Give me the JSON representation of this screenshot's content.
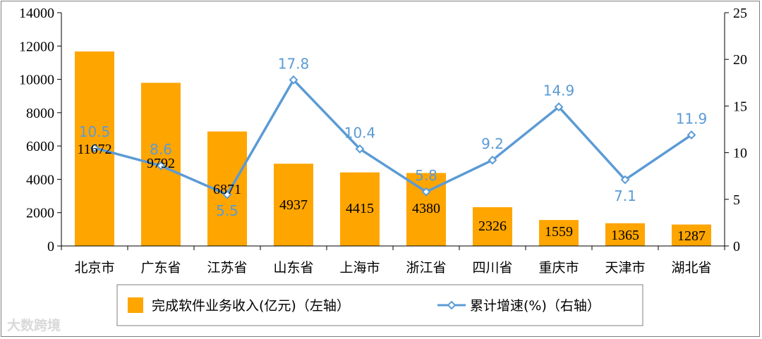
{
  "chart_data": {
    "type": "bar",
    "categories": [
      "北京市",
      "广东省",
      "江苏省",
      "山东省",
      "上海市",
      "浙江省",
      "四川省",
      "重庆市",
      "天津市",
      "湖北省"
    ],
    "series": [
      {
        "name": "完成软件业务收入(亿元)（左轴）",
        "type": "bar",
        "axis": "left",
        "color": "#ffa500",
        "values": [
          11672,
          9792,
          6871,
          4937,
          4415,
          4380,
          2326,
          1559,
          1365,
          1287
        ]
      },
      {
        "name": "累计增速(%)（右轴）",
        "type": "line",
        "axis": "right",
        "color": "#5b9bd5",
        "values": [
          10.5,
          8.6,
          5.5,
          17.8,
          10.4,
          5.8,
          9.2,
          14.9,
          7.1,
          11.9
        ]
      }
    ],
    "y_left": {
      "range": [
        0,
        14000
      ],
      "ticks": [
        "0",
        "2000",
        "4000",
        "6000",
        "8000",
        "10000",
        "12000",
        "14000"
      ]
    },
    "y_right": {
      "range": [
        0,
        25
      ],
      "ticks": [
        "0",
        "5",
        "10",
        "15",
        "20",
        "25"
      ]
    },
    "legend_position": "bottom",
    "grid": false
  },
  "watermark": "大数跨境"
}
